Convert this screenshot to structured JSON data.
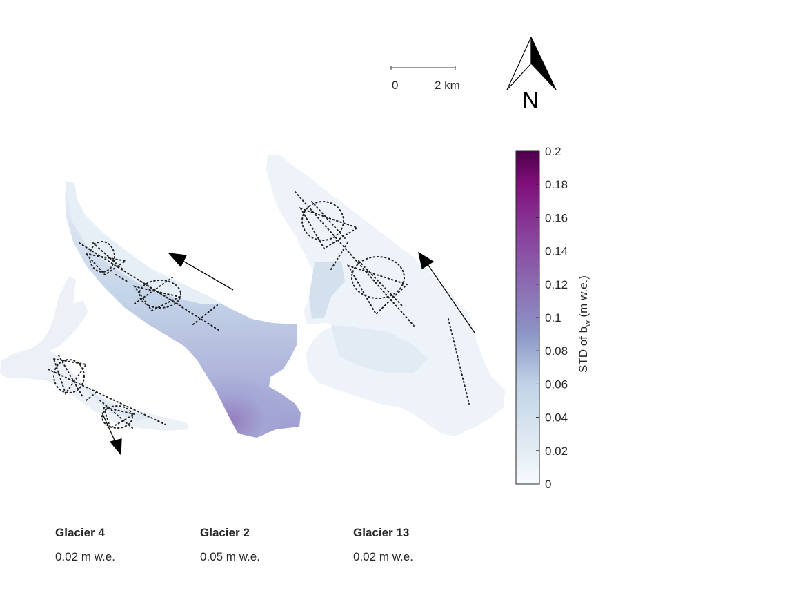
{
  "scale_bar": {
    "label_start": "0",
    "label_end": "2 km"
  },
  "north_arrow": {
    "label": "N",
    "icon": "north-arrow-icon"
  },
  "colorbar": {
    "title_prefix": "STD of b",
    "title_subscript": "w",
    "title_suffix": " (m w.e.)",
    "ticks": [
      "0",
      "0.02",
      "0.04",
      "0.06",
      "0.08",
      "0.1",
      "0.12",
      "0.14",
      "0.16",
      "0.18",
      "0.2"
    ],
    "min": 0,
    "max": 0.2,
    "colors": [
      "#f7fbfd",
      "#bfd3e6",
      "#8c96c6",
      "#8c6bb1",
      "#88419d",
      "#810f7c",
      "#4d004b"
    ]
  },
  "glaciers": [
    {
      "name": "Glacier 4",
      "value": "0.02 m w.e."
    },
    {
      "name": "Glacier 2",
      "value": "0.05 m w.e."
    },
    {
      "name": "Glacier 13",
      "value": "0.02 m w.e."
    }
  ]
}
